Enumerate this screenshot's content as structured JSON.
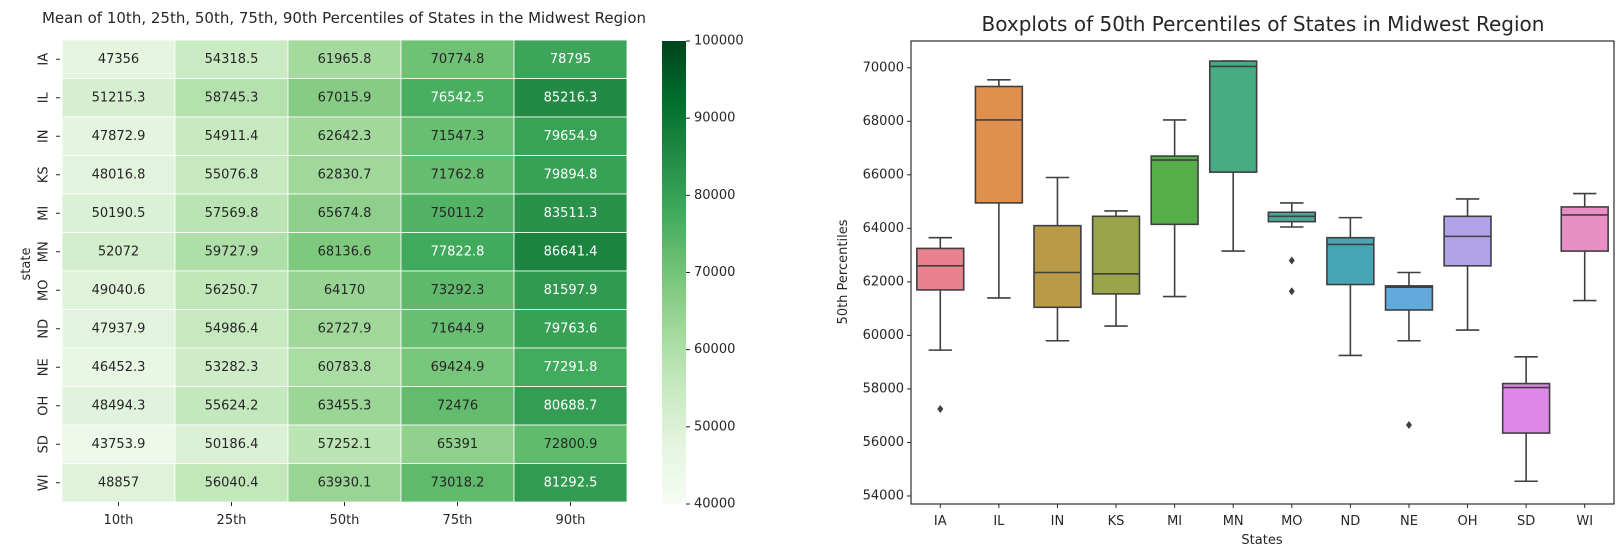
{
  "chart_data": [
    {
      "type": "heatmap",
      "title": "Mean of 10th, 25th, 50th, 75th, 90th Percentiles of States in the Midwest Region",
      "ylabel": "state",
      "xlabel": "",
      "columns": [
        "10th",
        "25th",
        "50th",
        "75th",
        "90th"
      ],
      "rows": [
        "IA",
        "IL",
        "IN",
        "KS",
        "MI",
        "MN",
        "MO",
        "ND",
        "NE",
        "OH",
        "SD",
        "WI"
      ],
      "cell_labels": [
        [
          "47356",
          "54318.5",
          "61965.8",
          "70774.8",
          "78795"
        ],
        [
          "51215.3",
          "58745.3",
          "67015.9",
          "76542.5",
          "85216.3"
        ],
        [
          "47872.9",
          "54911.4",
          "62642.3",
          "71547.3",
          "79654.9"
        ],
        [
          "48016.8",
          "55076.8",
          "62830.7",
          "71762.8",
          "79894.8"
        ],
        [
          "50190.5",
          "57569.8",
          "65674.8",
          "75011.2",
          "83511.3"
        ],
        [
          "52072",
          "59727.9",
          "68136.6",
          "77822.8",
          "86641.4"
        ],
        [
          "49040.6",
          "56250.7",
          "64170",
          "73292.3",
          "81597.9"
        ],
        [
          "47937.9",
          "54986.4",
          "62727.9",
          "71644.9",
          "79763.6"
        ],
        [
          "46452.3",
          "53282.3",
          "60783.8",
          "69424.9",
          "77291.8"
        ],
        [
          "48494.3",
          "55624.2",
          "63455.3",
          "72476",
          "80688.7"
        ],
        [
          "43753.9",
          "50186.4",
          "57252.1",
          "65391",
          "72800.9"
        ],
        [
          "48857",
          "56040.4",
          "63930.1",
          "73018.2",
          "81292.5"
        ]
      ],
      "colorbar": {
        "range": [
          40000,
          100000
        ],
        "ticks": [
          "40000",
          "50000",
          "60000",
          "70000",
          "80000",
          "90000",
          "100000"
        ],
        "colormap": "Greens"
      }
    },
    {
      "type": "box",
      "title": "Boxplots of 50th Percentiles of States in Midwest Region",
      "xlabel": "States",
      "ylabel": "50th Percentiles",
      "ylim": [
        53700,
        71000
      ],
      "yticks": [
        "54000",
        "56000",
        "58000",
        "60000",
        "62000",
        "64000",
        "66000",
        "68000",
        "70000"
      ],
      "categories": [
        "IA",
        "IL",
        "IN",
        "KS",
        "MI",
        "MN",
        "MO",
        "ND",
        "NE",
        "OH",
        "SD",
        "WI"
      ],
      "boxes": [
        {
          "category": "IA",
          "color": "#e8828d",
          "whisker_low": 59450,
          "q1": 61700,
          "median": 62600,
          "q3": 63250,
          "whisker_high": 63650,
          "outliers": [
            57250
          ]
        },
        {
          "category": "IL",
          "color": "#e0904e",
          "whisker_low": 61400,
          "q1": 64950,
          "median": 68050,
          "q3": 69300,
          "whisker_high": 69550,
          "outliers": []
        },
        {
          "category": "IN",
          "color": "#b89a47",
          "whisker_low": 59800,
          "q1": 61050,
          "median": 62350,
          "q3": 64100,
          "whisker_high": 65900,
          "outliers": []
        },
        {
          "category": "KS",
          "color": "#9aa44a",
          "whisker_low": 60350,
          "q1": 61550,
          "median": 62300,
          "q3": 64450,
          "whisker_high": 64650,
          "outliers": []
        },
        {
          "category": "MI",
          "color": "#57ad4a",
          "whisker_low": 61450,
          "q1": 64150,
          "median": 66550,
          "q3": 66700,
          "whisker_high": 68050,
          "outliers": []
        },
        {
          "category": "MN",
          "color": "#47ac83",
          "whisker_low": 63150,
          "q1": 66100,
          "median": 70050,
          "q3": 70250,
          "whisker_high": 70250,
          "outliers": []
        },
        {
          "category": "MO",
          "color": "#4aa99a",
          "whisker_low": 64050,
          "q1": 64250,
          "median": 64450,
          "q3": 64600,
          "whisker_high": 64950,
          "outliers": [
            62800,
            61650
          ]
        },
        {
          "category": "ND",
          "color": "#47a5b5",
          "whisker_low": 59250,
          "q1": 61900,
          "median": 63400,
          "q3": 63650,
          "whisker_high": 64400,
          "outliers": []
        },
        {
          "category": "NE",
          "color": "#62a9dd",
          "whisker_low": 59800,
          "q1": 60950,
          "median": 61800,
          "q3": 61850,
          "whisker_high": 62350,
          "outliers": [
            56650
          ]
        },
        {
          "category": "OH",
          "color": "#b2a2e8",
          "whisker_low": 60200,
          "q1": 62600,
          "median": 63700,
          "q3": 64450,
          "whisker_high": 65100,
          "outliers": []
        },
        {
          "category": "SD",
          "color": "#dd87e6",
          "whisker_low": 54550,
          "q1": 56350,
          "median": 58050,
          "q3": 58200,
          "whisker_high": 59200,
          "outliers": []
        },
        {
          "category": "WI",
          "color": "#e890c6",
          "whisker_low": 61300,
          "q1": 63150,
          "median": 64500,
          "q3": 64800,
          "whisker_high": 65300,
          "outliers": []
        }
      ]
    }
  ]
}
